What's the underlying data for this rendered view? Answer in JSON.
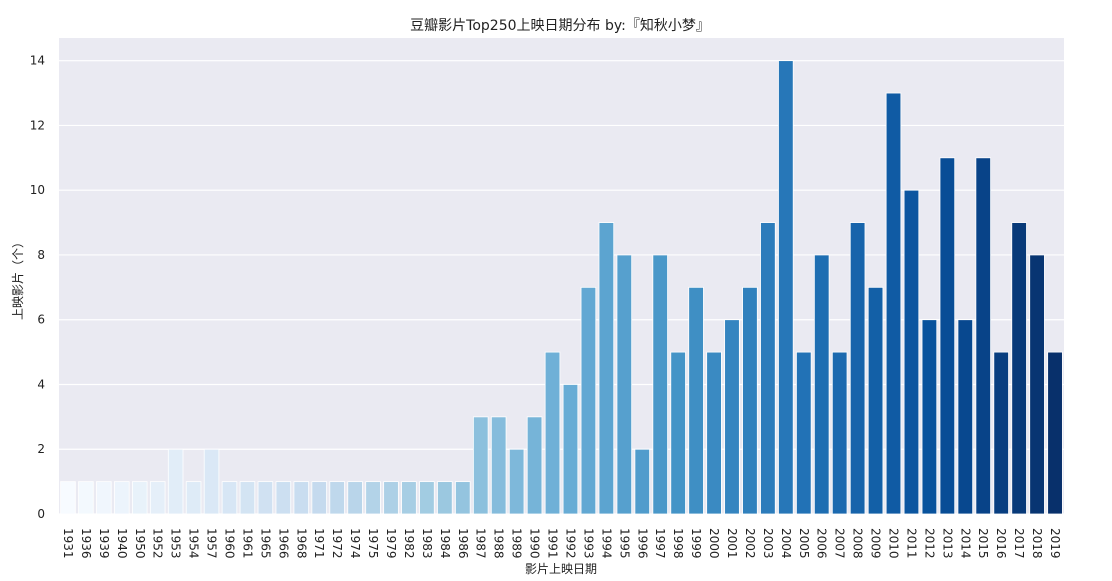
{
  "chart_data": {
    "type": "bar",
    "title": "豆瓣影片Top250上映日期分布     by:『知秋小梦』",
    "xlabel": "影片上映日期",
    "ylabel": "上映影片（个）",
    "categories": [
      "1931",
      "1936",
      "1939",
      "1940",
      "1950",
      "1952",
      "1953",
      "1954",
      "1957",
      "1960",
      "1961",
      "1965",
      "1966",
      "1968",
      "1971",
      "1972",
      "1974",
      "1975",
      "1979",
      "1982",
      "1983",
      "1984",
      "1986",
      "1987",
      "1988",
      "1989",
      "1990",
      "1991",
      "1992",
      "1993",
      "1994",
      "1995",
      "1996",
      "1997",
      "1998",
      "1999",
      "2000",
      "2001",
      "2002",
      "2003",
      "2004",
      "2005",
      "2006",
      "2007",
      "2008",
      "2009",
      "2010",
      "2011",
      "2012",
      "2013",
      "2014",
      "2015",
      "2016",
      "2017",
      "2018",
      "2019"
    ],
    "values": [
      1,
      1,
      1,
      1,
      1,
      1,
      2,
      1,
      2,
      1,
      1,
      1,
      1,
      1,
      1,
      1,
      1,
      1,
      1,
      1,
      1,
      1,
      1,
      3,
      3,
      2,
      3,
      5,
      4,
      7,
      9,
      8,
      2,
      8,
      5,
      7,
      5,
      6,
      7,
      9,
      14,
      5,
      8,
      5,
      9,
      7,
      13,
      10,
      6,
      11,
      6,
      11,
      5,
      9,
      8,
      5
    ],
    "ylim": [
      0,
      14.7
    ],
    "yticks": [
      0,
      2,
      4,
      6,
      8,
      10,
      12,
      14
    ],
    "grid": true,
    "legend": "none",
    "palette": "Blues",
    "colors": {
      "plot_background": "#EAEAF2",
      "grid": "#FFFFFF",
      "bar_light": "#F7FBFF",
      "bar_dark": "#08306B"
    }
  }
}
